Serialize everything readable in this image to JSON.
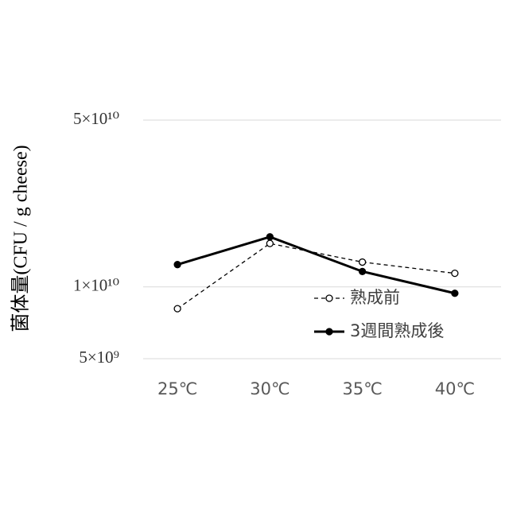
{
  "chart_data": {
    "type": "line",
    "y_label": "菌体量(CFU / g cheese)",
    "categories": [
      "25℃",
      "30℃",
      "35℃",
      "40℃"
    ],
    "series": [
      {
        "name": "熟成前",
        "color": "#000000",
        "dashed": true,
        "marker": "open",
        "values": [
          8100000000,
          15200000000,
          12700000000,
          11400000000
        ]
      },
      {
        "name": "3週間熟成後",
        "color": "#000000",
        "dashed": false,
        "marker": "filled",
        "values": [
          12400000000,
          16200000000,
          11600000000,
          9400000000
        ]
      }
    ],
    "log_scale": true,
    "ylim": [
      5000000000,
      50000000000
    ],
    "yticks": [
      {
        "value": 5000000000,
        "label": "5×10⁹"
      },
      {
        "value": 10000000000,
        "label": "1×10¹⁰"
      },
      {
        "value": 50000000000,
        "label": "5×10¹⁰"
      }
    ],
    "grid": true,
    "legend": "inside-right"
  }
}
